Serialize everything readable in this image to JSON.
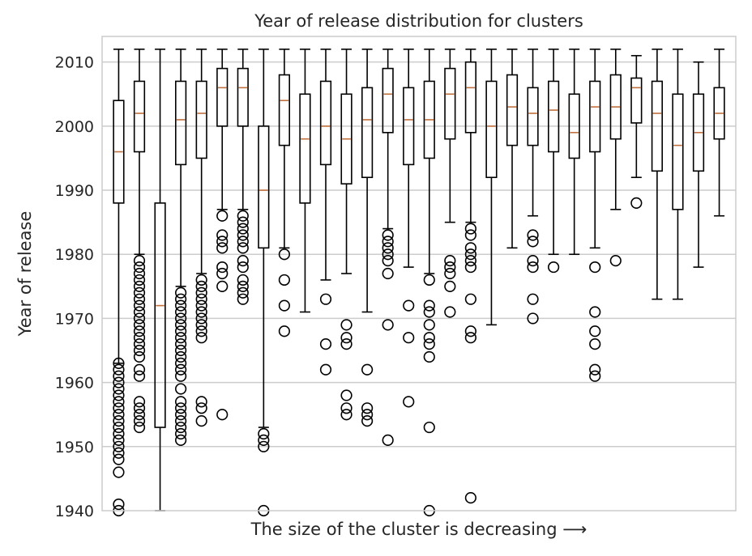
{
  "chart_data": {
    "type": "box",
    "title": "Year of release distribution for clusters",
    "xlabel": "The size of the cluster is decreasing ⟶",
    "ylabel": "Year of release",
    "ylim": [
      1940,
      2014
    ],
    "yticks": [
      1940,
      1950,
      1960,
      1970,
      1980,
      1990,
      2000,
      2010
    ],
    "grid": "horizontal",
    "colors": {
      "box": "#000000",
      "median": "#c0703d",
      "grid": "#cccccc",
      "frame": "#cccccc"
    },
    "boxes": [
      {
        "q1": 1988,
        "median": 1996,
        "q3": 2004,
        "whislo": 1963,
        "whishi": 2012,
        "fliers": [
          1963,
          1962,
          1961,
          1960,
          1959,
          1958,
          1957,
          1956,
          1955,
          1954,
          1953,
          1952,
          1951,
          1950,
          1949,
          1948,
          1946,
          1941,
          1940
        ]
      },
      {
        "q1": 1996,
        "median": 2002,
        "q3": 2007,
        "whislo": 1980,
        "whishi": 2012,
        "fliers": [
          1979,
          1978,
          1977,
          1976,
          1975,
          1974,
          1973,
          1972,
          1971,
          1970,
          1969,
          1968,
          1967,
          1966,
          1965,
          1964,
          1962,
          1961,
          1957,
          1956,
          1955,
          1954,
          1953
        ]
      },
      {
        "q1": 1953,
        "median": 1972,
        "q3": 1988,
        "whislo": 1940,
        "whishi": 2012,
        "fliers": []
      },
      {
        "q1": 1994,
        "median": 2001,
        "q3": 2007,
        "whislo": 1975,
        "whishi": 2012,
        "fliers": [
          1974,
          1973,
          1972,
          1971,
          1970,
          1969,
          1968,
          1967,
          1966,
          1965,
          1964,
          1963,
          1962,
          1961,
          1959,
          1957,
          1956,
          1955,
          1954,
          1953,
          1952,
          1951
        ]
      },
      {
        "q1": 1995,
        "median": 2002,
        "q3": 2007,
        "whislo": 1977,
        "whishi": 2012,
        "fliers": [
          1976,
          1975,
          1974,
          1973,
          1972,
          1971,
          1970,
          1969,
          1968,
          1967,
          1957,
          1956,
          1954
        ]
      },
      {
        "q1": 2000,
        "median": 2006,
        "q3": 2009,
        "whislo": 1987,
        "whishi": 2012,
        "fliers": [
          1986,
          1983,
          1982,
          1981,
          1978,
          1977,
          1975,
          1955
        ]
      },
      {
        "q1": 2000,
        "median": 2006,
        "q3": 2009,
        "whislo": 1987,
        "whishi": 2012,
        "fliers": [
          1986,
          1985,
          1984,
          1983,
          1982,
          1981,
          1979,
          1978,
          1976,
          1975,
          1974,
          1973
        ]
      },
      {
        "q1": 1981,
        "median": 1990,
        "q3": 2000,
        "whislo": 1953,
        "whishi": 2012,
        "fliers": [
          1952,
          1951,
          1950,
          1940
        ]
      },
      {
        "q1": 1997,
        "median": 2004,
        "q3": 2008,
        "whislo": 1981,
        "whishi": 2012,
        "fliers": [
          1980,
          1976,
          1972,
          1968
        ]
      },
      {
        "q1": 1988,
        "median": 1998,
        "q3": 2005,
        "whislo": 1971,
        "whishi": 2012,
        "fliers": []
      },
      {
        "q1": 1994,
        "median": 2000,
        "q3": 2007,
        "whislo": 1976,
        "whishi": 2012,
        "fliers": [
          1973,
          1966,
          1962
        ]
      },
      {
        "q1": 1991,
        "median": 1998,
        "q3": 2005,
        "whislo": 1977,
        "whishi": 2012,
        "fliers": [
          1969,
          1967,
          1966,
          1958,
          1956,
          1955
        ]
      },
      {
        "q1": 1992,
        "median": 2001,
        "q3": 2006,
        "whislo": 1971,
        "whishi": 2012,
        "fliers": [
          1962,
          1956,
          1955,
          1954
        ]
      },
      {
        "q1": 1999,
        "median": 2005,
        "q3": 2009,
        "whislo": 1984,
        "whishi": 2012,
        "fliers": [
          1983,
          1982,
          1981,
          1980,
          1979,
          1977,
          1969,
          1951
        ]
      },
      {
        "q1": 1994,
        "median": 2001,
        "q3": 2006,
        "whislo": 1978,
        "whishi": 2012,
        "fliers": [
          1972,
          1967,
          1957
        ]
      },
      {
        "q1": 1995,
        "median": 2001,
        "q3": 2007,
        "whislo": 1977,
        "whishi": 2012,
        "fliers": [
          1976,
          1972,
          1971,
          1969,
          1967,
          1966,
          1964,
          1953,
          1940
        ]
      },
      {
        "q1": 1998,
        "median": 2005,
        "q3": 2009,
        "whislo": 1985,
        "whishi": 2012,
        "fliers": [
          1979,
          1978,
          1977,
          1975,
          1971
        ]
      },
      {
        "q1": 1999,
        "median": 2006,
        "q3": 2010,
        "whislo": 1985,
        "whishi": 2012,
        "fliers": [
          1984,
          1983,
          1981,
          1980,
          1979,
          1978,
          1973,
          1968,
          1967,
          1942
        ]
      },
      {
        "q1": 1992,
        "median": 2000,
        "q3": 2007,
        "whislo": 1969,
        "whishi": 2012,
        "fliers": []
      },
      {
        "q1": 1997,
        "median": 2003,
        "q3": 2008,
        "whislo": 1981,
        "whishi": 2012,
        "fliers": []
      },
      {
        "q1": 1997,
        "median": 2002,
        "q3": 2006,
        "whislo": 1986,
        "whishi": 2012,
        "fliers": [
          1983,
          1982,
          1979,
          1978,
          1973,
          1970
        ]
      },
      {
        "q1": 1996,
        "median": 2002.5,
        "q3": 2007,
        "whislo": 1980,
        "whishi": 2012,
        "fliers": [
          1978
        ]
      },
      {
        "q1": 1995,
        "median": 1999,
        "q3": 2005,
        "whislo": 1980,
        "whishi": 2012,
        "fliers": []
      },
      {
        "q1": 1996,
        "median": 2003,
        "q3": 2007,
        "whislo": 1981,
        "whishi": 2012,
        "fliers": [
          1978,
          1971,
          1968,
          1966,
          1962,
          1961
        ]
      },
      {
        "q1": 1998,
        "median": 2003,
        "q3": 2008,
        "whislo": 1987,
        "whishi": 2012,
        "fliers": [
          1979
        ]
      },
      {
        "q1": 2000.5,
        "median": 2006,
        "q3": 2007.5,
        "whislo": 1992,
        "whishi": 2011,
        "fliers": [
          1988
        ]
      },
      {
        "q1": 1993,
        "median": 2002,
        "q3": 2007,
        "whislo": 1973,
        "whishi": 2012,
        "fliers": []
      },
      {
        "q1": 1987,
        "median": 1997,
        "q3": 2005,
        "whislo": 1973,
        "whishi": 2012,
        "fliers": []
      },
      {
        "q1": 1993,
        "median": 1999,
        "q3": 2005,
        "whislo": 1978,
        "whishi": 2010,
        "fliers": []
      },
      {
        "q1": 1998,
        "median": 2002,
        "q3": 2006,
        "whislo": 1986,
        "whishi": 2012,
        "fliers": []
      }
    ]
  }
}
